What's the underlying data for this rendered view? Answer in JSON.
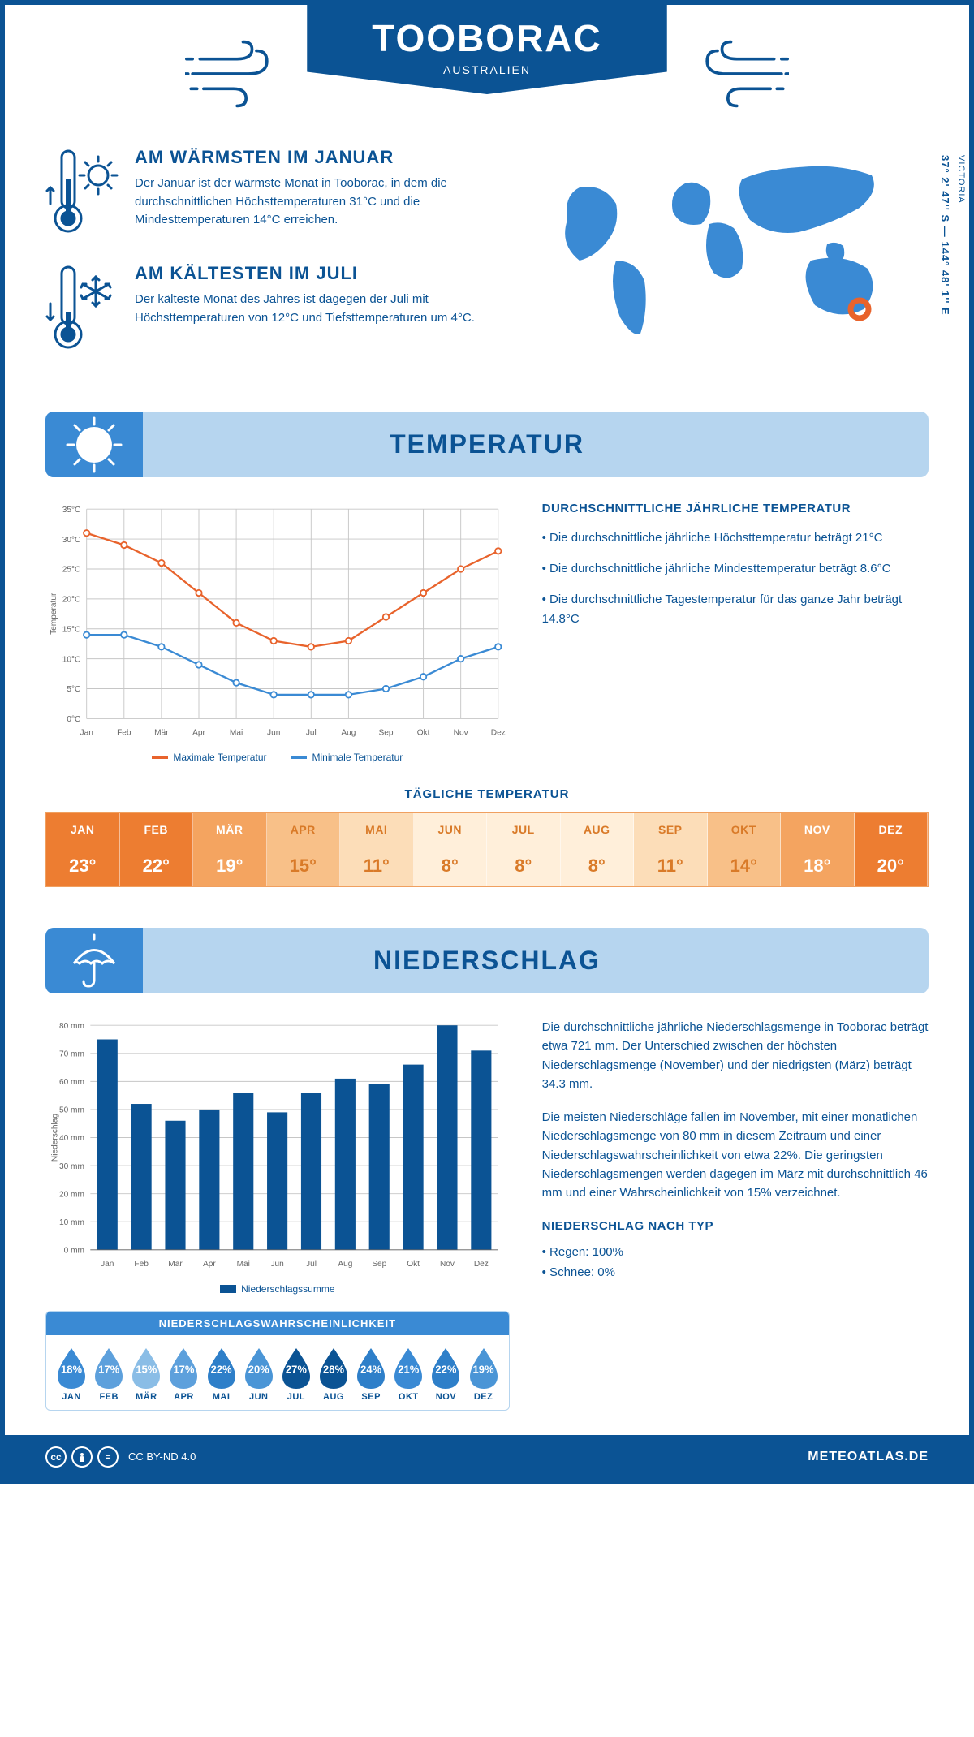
{
  "header": {
    "city": "TOOBORAC",
    "country": "AUSTRALIEN"
  },
  "facts": {
    "warm": {
      "title": "AM WÄRMSTEN IM JANUAR",
      "text": "Der Januar ist der wärmste Monat in Tooborac, in dem die durchschnittlichen Höchsttemperaturen 31°C und die Mindesttemperaturen 14°C erreichen."
    },
    "cold": {
      "title": "AM KÄLTESTEN IM JULI",
      "text": "Der kälteste Monat des Jahres ist dagegen der Juli mit Höchsttemperaturen von 12°C und Tiefsttemperaturen um 4°C."
    }
  },
  "map": {
    "coords": "37° 2' 47'' S — 144° 48' 1'' E",
    "region": "VICTORIA"
  },
  "sections": {
    "temperature": "TEMPERATUR",
    "precip": "NIEDERSCHLAG"
  },
  "temp_chart": {
    "type": "line",
    "months": [
      "Jan",
      "Feb",
      "Mär",
      "Apr",
      "Mai",
      "Jun",
      "Jul",
      "Aug",
      "Sep",
      "Okt",
      "Nov",
      "Dez"
    ],
    "max_values": [
      31,
      29,
      26,
      21,
      16,
      13,
      12,
      13,
      17,
      21,
      25,
      28
    ],
    "min_values": [
      14,
      14,
      12,
      9,
      6,
      4,
      4,
      4,
      5,
      7,
      10,
      12
    ],
    "max_color": "#e8632c",
    "min_color": "#3a8ad4",
    "ylim": [
      0,
      35
    ],
    "ytick_step": 5,
    "ylabel": "Temperatur",
    "grid_color": "#c6c6c6",
    "legend_max": "Maximale Temperatur",
    "legend_min": "Minimale Temperatur",
    "label_fontsize": 11
  },
  "temp_text": {
    "heading": "DURCHSCHNITTLICHE JÄHRLICHE TEMPERATUR",
    "b1": "• Die durchschnittliche jährliche Höchsttemperatur beträgt 21°C",
    "b2": "• Die durchschnittliche jährliche Mindesttemperatur beträgt 8.6°C",
    "b3": "• Die durchschnittliche Tagestemperatur für das ganze Jahr beträgt 14.8°C"
  },
  "daily": {
    "title": "TÄGLICHE TEMPERATUR",
    "months": [
      "JAN",
      "FEB",
      "MÄR",
      "APR",
      "MAI",
      "JUN",
      "JUL",
      "AUG",
      "SEP",
      "OKT",
      "NOV",
      "DEZ"
    ],
    "values": [
      "23°",
      "22°",
      "19°",
      "15°",
      "11°",
      "8°",
      "8°",
      "8°",
      "11°",
      "14°",
      "18°",
      "20°"
    ],
    "header_colors": [
      "#ed7d31",
      "#ed7d31",
      "#f4a460",
      "#f8c088",
      "#fcddb8",
      "#ffefda",
      "#ffefda",
      "#ffefda",
      "#fcddb8",
      "#f8c088",
      "#f4a460",
      "#ed7d31"
    ],
    "value_colors": [
      "#ed7d31",
      "#ed7d31",
      "#f4a460",
      "#f8c088",
      "#fcddb8",
      "#ffefda",
      "#ffefda",
      "#ffefda",
      "#fcddb8",
      "#f8c088",
      "#f4a460",
      "#ed7d31"
    ],
    "header_text_colors": [
      "#ffffff",
      "#ffffff",
      "#ffffff",
      "#d97a28",
      "#d97a28",
      "#d97a28",
      "#d97a28",
      "#d97a28",
      "#d97a28",
      "#d97a28",
      "#ffffff",
      "#ffffff"
    ],
    "value_text_colors": [
      "#ffffff",
      "#ffffff",
      "#ffffff",
      "#d97a28",
      "#d97a28",
      "#d97a28",
      "#d97a28",
      "#d97a28",
      "#d97a28",
      "#d97a28",
      "#ffffff",
      "#ffffff"
    ]
  },
  "precip_chart": {
    "type": "bar",
    "months": [
      "Jan",
      "Feb",
      "Mär",
      "Apr",
      "Mai",
      "Jun",
      "Jul",
      "Aug",
      "Sep",
      "Okt",
      "Nov",
      "Dez"
    ],
    "values": [
      75,
      52,
      46,
      50,
      56,
      49,
      56,
      61,
      59,
      66,
      80,
      71
    ],
    "bar_color": "#0b5394",
    "ylim": [
      0,
      80
    ],
    "ytick_step": 10,
    "ylabel": "Niederschlag",
    "grid_color": "#c6c6c6",
    "legend": "Niederschlagssumme",
    "label_fontsize": 11
  },
  "precip_text": {
    "p1": "Die durchschnittliche jährliche Niederschlagsmenge in Tooborac beträgt etwa 721 mm. Der Unterschied zwischen der höchsten Niederschlagsmenge (November) und der niedrigsten (März) beträgt 34.3 mm.",
    "p2": "Die meisten Niederschläge fallen im November, mit einer monatlichen Niederschlagsmenge von 80 mm in diesem Zeitraum und einer Niederschlagswahrscheinlichkeit von etwa 22%. Die geringsten Niederschlagsmengen werden dagegen im März mit durchschnittlich 46 mm und einer Wahrscheinlichkeit von 15% verzeichnet.",
    "type_head": "NIEDERSCHLAG NACH TYP",
    "type_rain": "• Regen: 100%",
    "type_snow": "• Schnee: 0%"
  },
  "prob": {
    "title": "NIEDERSCHLAGSWAHRSCHEINLICHKEIT",
    "months": [
      "JAN",
      "FEB",
      "MÄR",
      "APR",
      "MAI",
      "JUN",
      "JUL",
      "AUG",
      "SEP",
      "OKT",
      "NOV",
      "DEZ"
    ],
    "values": [
      "18%",
      "17%",
      "15%",
      "17%",
      "22%",
      "20%",
      "27%",
      "28%",
      "24%",
      "21%",
      "22%",
      "19%"
    ],
    "colors": [
      "#3a8ad4",
      "#5da0dc",
      "#8abde6",
      "#5da0dc",
      "#2e7fc9",
      "#4a95d6",
      "#0b5394",
      "#0b5394",
      "#2e7fc9",
      "#3a8ad4",
      "#2e7fc9",
      "#4a95d6"
    ]
  },
  "footer": {
    "license": "CC BY-ND 4.0",
    "site": "METEOATLAS.DE"
  },
  "colors": {
    "primary": "#0b5394",
    "light": "#b6d5ef",
    "mid": "#3a8ad4",
    "marker": "#e8632c"
  }
}
